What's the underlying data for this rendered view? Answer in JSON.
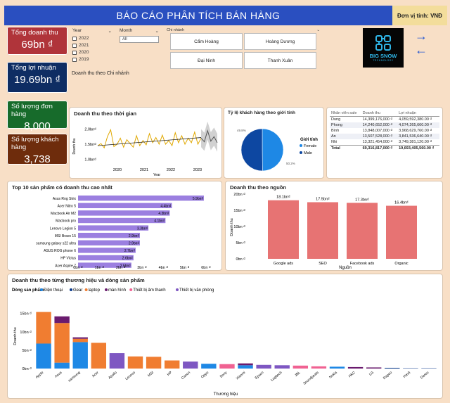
{
  "header": {
    "title": "BÁO CÁO PHÂN TÍCH BÁN HÀNG",
    "unit": "Đơn vị tính: VNĐ"
  },
  "kpis": [
    {
      "label": "Tổng doanh thu",
      "value": "69bn ₫"
    },
    {
      "label": "Tổng lợi nhuận",
      "value": "19.69bn ₫"
    },
    {
      "label": "Số lượng đơn hàng",
      "value": "8,000"
    },
    {
      "label": "Số lượng khách hàng",
      "value": "3,738"
    }
  ],
  "filters": {
    "year_label": "Year",
    "years": [
      "2022",
      "2021",
      "2020",
      "2019"
    ],
    "month_label": "Month",
    "month_value": "All",
    "branch_label": "Chi nhánh",
    "branches": [
      "Cẩm Hoàng",
      "Hoàng Dương",
      "Đại Ninh",
      "Thanh Xuân"
    ],
    "branch_caption": "Doanh thu theo Chi nhánh"
  },
  "logo": {
    "line1": "BIG SNOW",
    "line2": "TECHNOLOGY"
  },
  "nav": {
    "next": "→",
    "prev": "←"
  },
  "chart_data": [
    {
      "id": "time",
      "type": "line",
      "title": "Doanh thu theo thời gian",
      "xlabel": "Year",
      "ylabel": "Doanh thu",
      "yticks": [
        "1.0bn₫",
        "1.5bn₫",
        "2.0bn₫"
      ],
      "ylim": [
        0.8,
        2.2
      ],
      "xticks": [
        "2020",
        "2021",
        "2022",
        "2023"
      ],
      "values": [
        1.45,
        1.52,
        1.38,
        1.75,
        1.98,
        1.42,
        1.5,
        1.7,
        1.4,
        1.65,
        1.52,
        1.4,
        1.78,
        1.45,
        1.62,
        1.48,
        1.85,
        1.55,
        1.72,
        1.5,
        1.8,
        1.5,
        1.62,
        1.45,
        1.88,
        1.55,
        1.78,
        1.5,
        1.7,
        1.55,
        1.9,
        1.5,
        1.7,
        1.58,
        1.95,
        1.6,
        1.75,
        1.55
      ],
      "trend": [
        1.45,
        1.72
      ],
      "forecast_label": "2023"
    },
    {
      "id": "gender",
      "type": "pie",
      "title": "Tỷ lệ khách hàng theo giới tính",
      "legend_title": "Giới tính",
      "labels": [
        "Female",
        "Male"
      ],
      "values": [
        49.8,
        50.2
      ],
      "value_labels": [
        "49.8%",
        "50.2%"
      ]
    },
    {
      "id": "staff",
      "type": "table",
      "columns": [
        "Nhân viên sale",
        "Doanh thu",
        "Lợi nhuận"
      ],
      "rows": [
        [
          "Dung",
          "14,399,176,000 ₫",
          "4,059,592,380.00 ₫"
        ],
        [
          "Phong",
          "14,240,652,000 ₫",
          "4,074,265,660.00 ₫"
        ],
        [
          "Bình",
          "13,848,007,000 ₫",
          "3,968,629,760.00 ₫"
        ],
        [
          "An",
          "13,507,528,000 ₫",
          "3,841,536,640.00 ₫"
        ],
        [
          "Nhi",
          "13,321,454,000 ₫",
          "3,749,381,120.00 ₫"
        ]
      ],
      "total": [
        "Total",
        "69,316,817,000 ₫",
        "19,693,405,560.00 ₫"
      ]
    },
    {
      "id": "top10",
      "type": "bar",
      "title": "Top 10 sản phẩm có doanh thu cao nhất",
      "categories": [
        "Asus Rog Strix",
        "Acer Nitro 5",
        "Macbook Air M2",
        "Macbook pro",
        "Lenovo Legion 5",
        "MSI Bravo 15",
        "samsung galaxy s22 ultra",
        "ASUS ROG phone 6",
        "HP Victus",
        "Acer Aspire 7"
      ],
      "values": [
        5.9,
        4.4,
        4.3,
        4.1,
        3.3,
        2.9,
        2.9,
        2.7,
        2.6,
        2.5
      ],
      "value_labels": [
        "5.9bn₫",
        "4.4bn₫",
        "4.3bn₫",
        "4.1bn₫",
        "3.3bn₫",
        "2.9bn₫",
        "2.9bn₫",
        "2.7bn₫",
        "2.6bn₫",
        "2.5bn₫"
      ],
      "xticks": [
        "0bn ₫",
        "1bn ₫",
        "2bn ₫",
        "3bn ₫",
        "4bn ₫",
        "5bn ₫",
        "6bn ₫"
      ],
      "xlim": [
        0,
        6
      ]
    },
    {
      "id": "source",
      "type": "bar",
      "title": "Doanh thu theo nguồn",
      "categories": [
        "Google ads",
        "SEO",
        "Facebook ads",
        "Organic"
      ],
      "values": [
        18.1,
        17.5,
        17.3,
        16.4
      ],
      "value_labels": [
        "18.1bn₫",
        "17.5bn₫",
        "17.3bn₫",
        "16.4bn₫"
      ],
      "yticks": [
        "0bn ₫",
        "5bn ₫",
        "10bn ₫",
        "15bn ₫",
        "20bn ₫"
      ],
      "ylim": [
        0,
        20
      ],
      "xlabel": "Nguồn",
      "ylabel": "Doanh thu"
    },
    {
      "id": "brand",
      "type": "bar",
      "title": "Doanh thu theo từng thương hiệu và dòng sản phẩm",
      "legend_title": "Dòng sản phẩm",
      "series_names": [
        "Điện thoại",
        "Gear",
        "laptop",
        "màn hình",
        "Thiết bị âm thanh",
        "Thiết bị văn phòng"
      ],
      "series_colors": [
        "#1e88e5",
        "#0d3b8c",
        "#f07d31",
        "#6a1b6e",
        "#f06292",
        "#7e57c2"
      ],
      "categories": [
        "Apple",
        "Asus",
        "samsung",
        "Acer",
        "Apollo",
        "Lenovo",
        "MSI",
        "HP",
        "Canon",
        "Oppo",
        "Sony",
        "Xiaomi",
        "Epson",
        "Logitech",
        "JBL",
        "Soundpeats",
        "Nokia",
        "HKC",
        "LG",
        "Rapoo",
        "Havit",
        "Dareu"
      ],
      "stacks": [
        [
          6.8,
          0,
          8.6,
          0,
          0,
          0
        ],
        [
          1.6,
          0,
          10.8,
          1.8,
          0,
          0
        ],
        [
          7.2,
          0,
          0.9,
          0.4,
          0,
          0
        ],
        [
          0,
          0,
          7.0,
          0,
          0,
          0
        ],
        [
          0,
          0,
          0,
          0,
          0,
          4.2
        ],
        [
          0,
          0,
          3.3,
          0,
          0,
          0
        ],
        [
          0,
          0,
          3.2,
          0,
          0,
          0
        ],
        [
          0,
          0,
          2.2,
          0,
          0,
          0
        ],
        [
          0,
          0,
          0,
          0,
          0,
          1.9
        ],
        [
          1.3,
          0,
          0,
          0,
          0,
          0
        ],
        [
          0,
          0,
          0,
          0,
          1.2,
          0
        ],
        [
          0.9,
          0,
          0,
          0.5,
          0,
          0
        ],
        [
          0,
          0,
          0,
          0,
          0,
          1.0
        ],
        [
          0,
          0,
          0,
          0,
          0,
          0.9
        ],
        [
          0,
          0,
          0,
          0,
          0.8,
          0
        ],
        [
          0,
          0,
          0,
          0,
          0.6,
          0
        ],
        [
          0.5,
          0,
          0,
          0,
          0,
          0
        ],
        [
          0,
          0,
          0,
          0.4,
          0,
          0
        ],
        [
          0,
          0,
          0,
          0.3,
          0,
          0
        ],
        [
          0,
          0.2,
          0,
          0,
          0,
          0
        ],
        [
          0,
          0.1,
          0,
          0,
          0,
          0
        ],
        [
          0,
          0.1,
          0,
          0,
          0,
          0
        ]
      ],
      "yticks": [
        "0bn ₫",
        "5bn ₫",
        "10bn ₫",
        "15bn ₫"
      ],
      "ylim": [
        0,
        18
      ],
      "xlabel": "Thương hiệu",
      "ylabel": "Doanh thu"
    }
  ]
}
